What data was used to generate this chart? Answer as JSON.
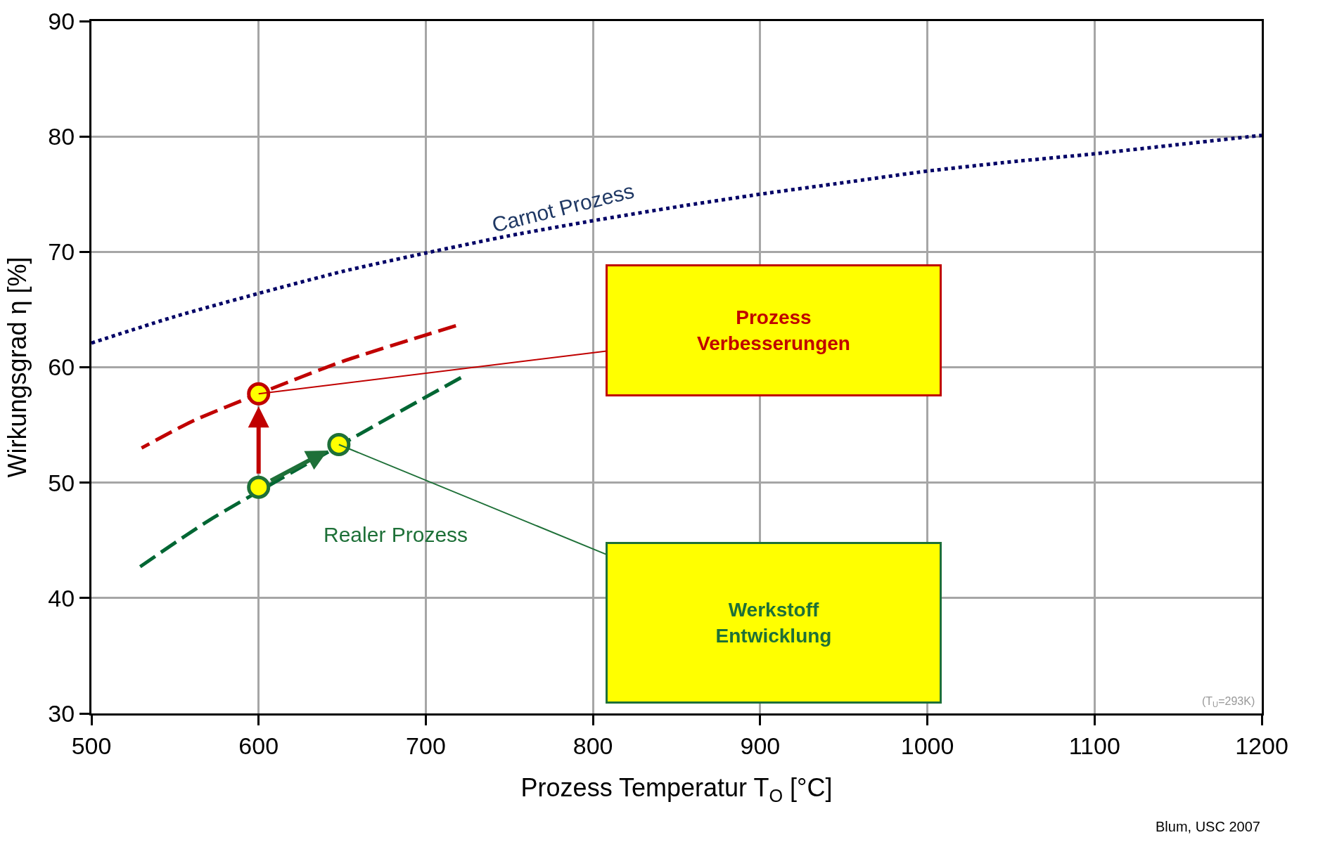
{
  "chart_data": {
    "type": "line",
    "xlabel": "Prozess Temperatur T$_{O}$ [°C]",
    "ylabel": "Wirkungsgrad η [%]",
    "series": [
      {
        "color": "#000066",
        "line_style": "dotted",
        "marker": "none",
        "x": [
          500,
          550,
          600,
          650,
          700,
          750,
          800,
          850,
          900,
          950,
          1000,
          1050,
          1100,
          1150,
          1200
        ],
        "values": [
          62.1,
          64.4,
          66.4,
          68.3,
          69.9,
          71.4,
          72.7,
          73.9,
          75.0,
          76.0,
          77.0,
          77.8,
          78.5,
          79.3,
          80.1
        ]
      },
      {
        "color": "#c00000",
        "line_style": "dashed",
        "marker": "none",
        "x": [
          530,
          560,
          600,
          650,
          700,
          718
        ],
        "values": [
          53.0,
          55.3,
          57.7,
          60.5,
          62.8,
          63.6
        ]
      },
      {
        "color": "#006633",
        "line_style": "dashed",
        "marker": "none",
        "x": [
          526,
          570,
          680,
          721
        ],
        "values": [
          42.4,
          46.7,
          55.8,
          59.1
        ]
      },
      {
        "type": "scatter",
        "color": "#c00000",
        "marker": "circle",
        "x": [
          600
        ],
        "values": [
          57.7
        ]
      },
      {
        "type": "scatter",
        "color": "#1e7038",
        "marker": "circle",
        "x": [
          600,
          648
        ],
        "values": [
          49.6,
          53.3
        ]
      }
    ],
    "annotations": [
      "Carnot Prozess",
      "Realer Prozess",
      "Prozess\nVerbesserungen",
      "Werkstoff\nEntwicklung",
      "(T$_{U}$=293K)",
      "Blum, USC 2007"
    ],
    "xlim": [
      500,
      1200
    ],
    "xticks": [
      500,
      600,
      700,
      800,
      900,
      1000,
      1100,
      1200
    ],
    "ylim": [
      30,
      90
    ],
    "yticks": [
      30,
      40,
      50,
      60,
      70,
      80,
      90
    ],
    "grid": true
  }
}
